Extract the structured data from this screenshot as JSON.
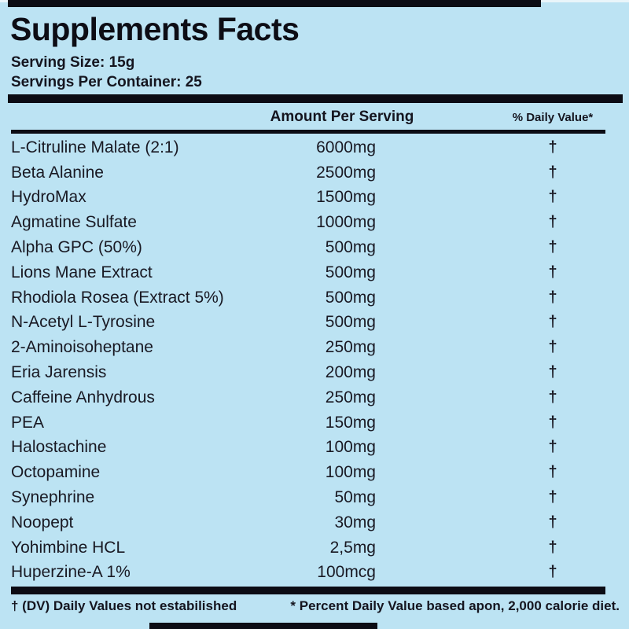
{
  "label": {
    "title": "Supplements Facts",
    "serving_size": "Serving Size: 15g",
    "servings_per_container": "Servings Per Container: 25",
    "columns": {
      "amount": "Amount Per Serving",
      "daily_value": "% Daily Value*"
    },
    "rows": [
      {
        "name": "L-Citruline Malate (2:1)",
        "amount": "6000mg",
        "dv": "†"
      },
      {
        "name": "Beta Alanine",
        "amount": "2500mg",
        "dv": "†"
      },
      {
        "name": "HydroMax",
        "amount": "1500mg",
        "dv": "†"
      },
      {
        "name": "Agmatine Sulfate",
        "amount": "1000mg",
        "dv": "†"
      },
      {
        "name": "Alpha GPC (50%)",
        "amount": "500mg",
        "dv": "†"
      },
      {
        "name": "Lions Mane Extract",
        "amount": "500mg",
        "dv": "†"
      },
      {
        "name": "Rhodiola Rosea (Extract 5%)",
        "amount": "500mg",
        "dv": "†"
      },
      {
        "name": "N-Acetyl L-Tyrosine",
        "amount": "500mg",
        "dv": "†"
      },
      {
        "name": "2-Aminoisoheptane",
        "amount": "250mg",
        "dv": "†"
      },
      {
        "name": "Eria Jarensis",
        "amount": "200mg",
        "dv": "†"
      },
      {
        "name": "Caffeine Anhydrous",
        "amount": "250mg",
        "dv": "†"
      },
      {
        "name": "PEA",
        "amount": "150mg",
        "dv": "†"
      },
      {
        "name": "Halostachine",
        "amount": "100mg",
        "dv": "†"
      },
      {
        "name": "Octopamine",
        "amount": "100mg",
        "dv": "†"
      },
      {
        "name": "Synephrine",
        "amount": "50mg",
        "dv": "†"
      },
      {
        "name": "Noopept",
        "amount": "30mg",
        "dv": "†"
      },
      {
        "name": "Yohimbine HCL",
        "amount": "2,5mg",
        "dv": "†"
      },
      {
        "name": "Huperzine-A 1%",
        "amount": "100mcg",
        "dv": "†"
      }
    ],
    "footnotes": {
      "left": "† (DV) Daily Values not estabilished",
      "right": "* Percent Daily Value based apon, 2,000 calorie diet."
    },
    "colors": {
      "background": "#bce3f3",
      "text": "#15151f",
      "bar": "#0c0c14"
    }
  }
}
